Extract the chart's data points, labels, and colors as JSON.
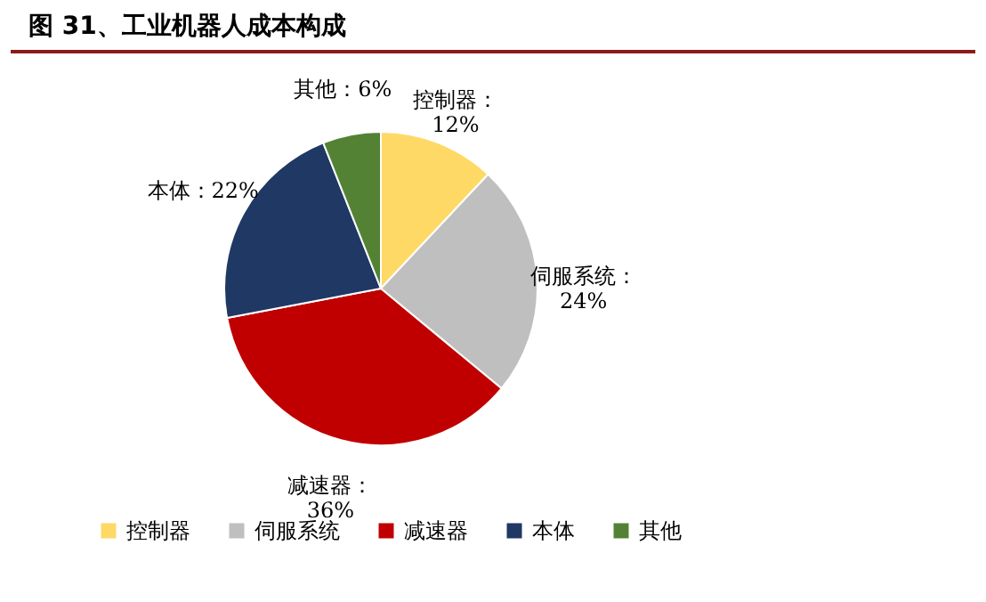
{
  "chart_data": {
    "type": "pie",
    "title": "图 31、工业机器人成本构成",
    "categories": [
      "控制器",
      "伺服系统",
      "减速器",
      "本体",
      "其他"
    ],
    "values": [
      12,
      24,
      36,
      22,
      6
    ],
    "colors": [
      "#ffd966",
      "#bfbfbf",
      "#c00000",
      "#1f3864",
      "#548235"
    ],
    "value_labels": [
      "控制器：\n12%",
      "伺服系统：\n24%",
      "减速器：\n36%",
      "本体：22%",
      "其他：6%"
    ],
    "legend": "bottom"
  }
}
